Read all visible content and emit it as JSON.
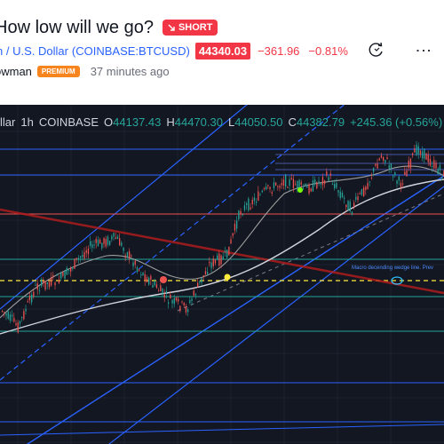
{
  "header": {
    "title": "How low will we go?",
    "idea_badge": "SHORT",
    "symbol_name": "n / U.S. Dollar",
    "symbol_code": "(COINBASE:BTCUSD)",
    "price": "44340.03",
    "change": "−361.96",
    "change_pct": "−0.81%",
    "author": "owman",
    "author_badge": "PREMIUM",
    "time_ago": "37 minutes ago"
  },
  "chart": {
    "legend": {
      "symbol": "llar",
      "interval": "1h",
      "exchange": "COINBASE",
      "o_label": "O",
      "o": "44137.43",
      "h_label": "H",
      "h": "44470.30",
      "l_label": "L",
      "l": "44050.50",
      "c_label": "C",
      "c": "44382.79",
      "change": "+245.36 (+0.56%)"
    },
    "annotation": "Macro decending wedge line. Prev",
    "colors": {
      "background": "#131722",
      "up": "#26a69a",
      "down": "#ef5350",
      "channel": "#2962ff",
      "badge": "#f23645",
      "premium": "#f7841d"
    }
  }
}
